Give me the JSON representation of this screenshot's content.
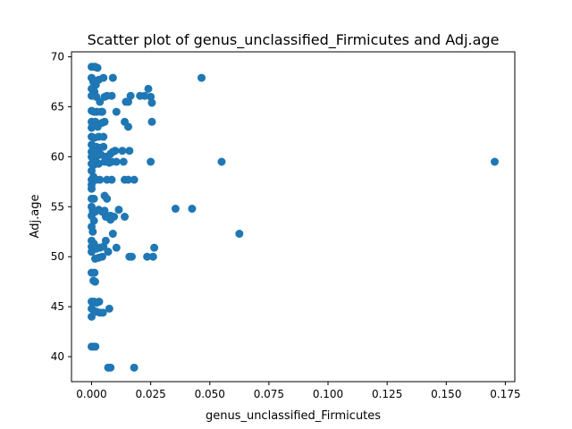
{
  "chart_data": {
    "type": "scatter",
    "title": "Scatter plot of genus_unclassified_Firmicutes and Adj.age",
    "xlabel": "genus_unclassified_Firmicutes",
    "ylabel": "Adj.age",
    "xlim": [
      -0.0085,
      0.179
    ],
    "ylim": [
      37.5,
      70.5
    ],
    "xticks": [
      0.0,
      0.025,
      0.05,
      0.075,
      0.1,
      0.125,
      0.15,
      0.175
    ],
    "xtick_labels": [
      "0.000",
      "0.025",
      "0.050",
      "0.075",
      "0.100",
      "0.125",
      "0.150",
      "0.175"
    ],
    "yticks": [
      40,
      45,
      50,
      55,
      60,
      65,
      70
    ],
    "ytick_labels": [
      "40",
      "45",
      "50",
      "55",
      "60",
      "65",
      "70"
    ],
    "grid": false,
    "marker_color": "#1f77b4",
    "points": [
      {
        "x": 0.0,
        "y": 69.0
      },
      {
        "x": 0.0008,
        "y": 69.0
      },
      {
        "x": 0.0015,
        "y": 69.0
      },
      {
        "x": 0.0025,
        "y": 68.9
      },
      {
        "x": 0.0,
        "y": 67.9
      },
      {
        "x": 0.0007,
        "y": 67.5
      },
      {
        "x": 0.0018,
        "y": 67.2
      },
      {
        "x": 0.003,
        "y": 67.7
      },
      {
        "x": 0.0,
        "y": 66.8
      },
      {
        "x": 0.0012,
        "y": 66.5
      },
      {
        "x": 0.0,
        "y": 66.1
      },
      {
        "x": 0.002,
        "y": 66.0
      },
      {
        "x": 0.0035,
        "y": 65.5
      },
      {
        "x": 0.0,
        "y": 64.6
      },
      {
        "x": 0.001,
        "y": 64.5
      },
      {
        "x": 0.0022,
        "y": 64.5
      },
      {
        "x": 0.004,
        "y": 64.5
      },
      {
        "x": 0.0,
        "y": 63.5
      },
      {
        "x": 0.0008,
        "y": 63.3
      },
      {
        "x": 0.0016,
        "y": 63.5
      },
      {
        "x": 0.0026,
        "y": 63.0
      },
      {
        "x": 0.0,
        "y": 62.9
      },
      {
        "x": 0.0045,
        "y": 63.4
      },
      {
        "x": 0.0,
        "y": 62.0
      },
      {
        "x": 0.0012,
        "y": 61.9
      },
      {
        "x": 0.003,
        "y": 62.0
      },
      {
        "x": 0.0,
        "y": 61.2
      },
      {
        "x": 0.0008,
        "y": 61.0
      },
      {
        "x": 0.002,
        "y": 61.0
      },
      {
        "x": 0.0035,
        "y": 60.9
      },
      {
        "x": 0.005,
        "y": 61.0
      },
      {
        "x": 0.0,
        "y": 60.5
      },
      {
        "x": 0.001,
        "y": 60.4
      },
      {
        "x": 0.0025,
        "y": 60.3
      },
      {
        "x": 0.0,
        "y": 60.0
      },
      {
        "x": 0.0018,
        "y": 59.9
      },
      {
        "x": 0.004,
        "y": 60.2
      },
      {
        "x": 0.006,
        "y": 60.0
      },
      {
        "x": 0.008,
        "y": 60.3
      },
      {
        "x": 0.0,
        "y": 59.3
      },
      {
        "x": 0.001,
        "y": 59.2
      },
      {
        "x": 0.003,
        "y": 59.3
      },
      {
        "x": 0.0055,
        "y": 59.5
      },
      {
        "x": 0.007,
        "y": 59.6
      },
      {
        "x": 0.0,
        "y": 58.6
      },
      {
        "x": 0.0008,
        "y": 58.0
      },
      {
        "x": 0.0,
        "y": 57.7
      },
      {
        "x": 0.002,
        "y": 57.7
      },
      {
        "x": 0.0035,
        "y": 57.7
      },
      {
        "x": 0.0,
        "y": 57.2
      },
      {
        "x": 0.0,
        "y": 56.8
      },
      {
        "x": 0.0,
        "y": 55.8
      },
      {
        "x": 0.001,
        "y": 55.8
      },
      {
        "x": 0.0,
        "y": 55.0
      },
      {
        "x": 0.0005,
        "y": 54.6
      },
      {
        "x": 0.0015,
        "y": 54.5
      },
      {
        "x": 0.003,
        "y": 54.7
      },
      {
        "x": 0.0045,
        "y": 54.5
      },
      {
        "x": 0.0,
        "y": 54.1
      },
      {
        "x": 0.001,
        "y": 53.6
      },
      {
        "x": 0.006,
        "y": 54.0
      },
      {
        "x": 0.0,
        "y": 53.0
      },
      {
        "x": 0.0005,
        "y": 52.5
      },
      {
        "x": 0.0,
        "y": 51.6
      },
      {
        "x": 0.001,
        "y": 51.3
      },
      {
        "x": 0.0,
        "y": 51.0
      },
      {
        "x": 0.002,
        "y": 50.8
      },
      {
        "x": 0.0035,
        "y": 50.9
      },
      {
        "x": 0.0,
        "y": 50.5
      },
      {
        "x": 0.0015,
        "y": 49.8
      },
      {
        "x": 0.003,
        "y": 49.9
      },
      {
        "x": 0.0045,
        "y": 50.0
      },
      {
        "x": 0.0,
        "y": 48.4
      },
      {
        "x": 0.0012,
        "y": 48.4
      },
      {
        "x": 0.0008,
        "y": 47.6
      },
      {
        "x": 0.0015,
        "y": 47.5
      },
      {
        "x": 0.0,
        "y": 45.5
      },
      {
        "x": 0.001,
        "y": 45.5
      },
      {
        "x": 0.0022,
        "y": 45.4
      },
      {
        "x": 0.0032,
        "y": 45.5
      },
      {
        "x": 0.0,
        "y": 44.8
      },
      {
        "x": 0.001,
        "y": 44.6
      },
      {
        "x": 0.002,
        "y": 44.5
      },
      {
        "x": 0.0035,
        "y": 44.4
      },
      {
        "x": 0.0048,
        "y": 44.4
      },
      {
        "x": 0.0,
        "y": 44.0
      },
      {
        "x": 0.0,
        "y": 41.0
      },
      {
        "x": 0.0008,
        "y": 41.0
      },
      {
        "x": 0.0016,
        "y": 41.0
      },
      {
        "x": 0.005,
        "y": 67.9
      },
      {
        "x": 0.0065,
        "y": 66.1
      },
      {
        "x": 0.0055,
        "y": 66.0
      },
      {
        "x": 0.0045,
        "y": 64.5
      },
      {
        "x": 0.0055,
        "y": 63.5
      },
      {
        "x": 0.005,
        "y": 62.0
      },
      {
        "x": 0.0065,
        "y": 59.8
      },
      {
        "x": 0.0075,
        "y": 59.4
      },
      {
        "x": 0.0065,
        "y": 57.7
      },
      {
        "x": 0.0055,
        "y": 56.1
      },
      {
        "x": 0.0065,
        "y": 55.8
      },
      {
        "x": 0.0055,
        "y": 54.6
      },
      {
        "x": 0.007,
        "y": 54.0
      },
      {
        "x": 0.006,
        "y": 51.6
      },
      {
        "x": 0.005,
        "y": 51.0
      },
      {
        "x": 0.007,
        "y": 50.5
      },
      {
        "x": 0.0075,
        "y": 44.8
      },
      {
        "x": 0.007,
        "y": 38.9
      },
      {
        "x": 0.008,
        "y": 38.9
      },
      {
        "x": 0.009,
        "y": 67.9
      },
      {
        "x": 0.0085,
        "y": 66.1
      },
      {
        "x": 0.0105,
        "y": 64.5
      },
      {
        "x": 0.009,
        "y": 60.5
      },
      {
        "x": 0.01,
        "y": 60.6
      },
      {
        "x": 0.0085,
        "y": 59.5
      },
      {
        "x": 0.0105,
        "y": 59.5
      },
      {
        "x": 0.0085,
        "y": 57.7
      },
      {
        "x": 0.008,
        "y": 54.1
      },
      {
        "x": 0.0095,
        "y": 54.0
      },
      {
        "x": 0.008,
        "y": 53.7
      },
      {
        "x": 0.0115,
        "y": 54.7
      },
      {
        "x": 0.009,
        "y": 52.3
      },
      {
        "x": 0.0105,
        "y": 50.9
      },
      {
        "x": 0.014,
        "y": 63.5
      },
      {
        "x": 0.0155,
        "y": 63.0
      },
      {
        "x": 0.0145,
        "y": 65.5
      },
      {
        "x": 0.0155,
        "y": 65.5
      },
      {
        "x": 0.0165,
        "y": 66.1
      },
      {
        "x": 0.013,
        "y": 60.6
      },
      {
        "x": 0.016,
        "y": 60.6
      },
      {
        "x": 0.0135,
        "y": 59.5
      },
      {
        "x": 0.014,
        "y": 57.7
      },
      {
        "x": 0.0155,
        "y": 57.7
      },
      {
        "x": 0.018,
        "y": 57.7
      },
      {
        "x": 0.014,
        "y": 54.0
      },
      {
        "x": 0.016,
        "y": 50.0
      },
      {
        "x": 0.017,
        "y": 50.0
      },
      {
        "x": 0.018,
        "y": 38.9
      },
      {
        "x": 0.0205,
        "y": 66.1
      },
      {
        "x": 0.0225,
        "y": 66.1
      },
      {
        "x": 0.024,
        "y": 66.8
      },
      {
        "x": 0.025,
        "y": 66.0
      },
      {
        "x": 0.0255,
        "y": 65.4
      },
      {
        "x": 0.0255,
        "y": 63.5
      },
      {
        "x": 0.025,
        "y": 59.5
      },
      {
        "x": 0.0235,
        "y": 50.0
      },
      {
        "x": 0.026,
        "y": 50.0
      },
      {
        "x": 0.0265,
        "y": 50.9
      },
      {
        "x": 0.0355,
        "y": 54.8
      },
      {
        "x": 0.0425,
        "y": 54.8
      },
      {
        "x": 0.0465,
        "y": 67.9
      },
      {
        "x": 0.055,
        "y": 59.5
      },
      {
        "x": 0.0625,
        "y": 52.3
      },
      {
        "x": 0.1705,
        "y": 59.5
      }
    ]
  }
}
